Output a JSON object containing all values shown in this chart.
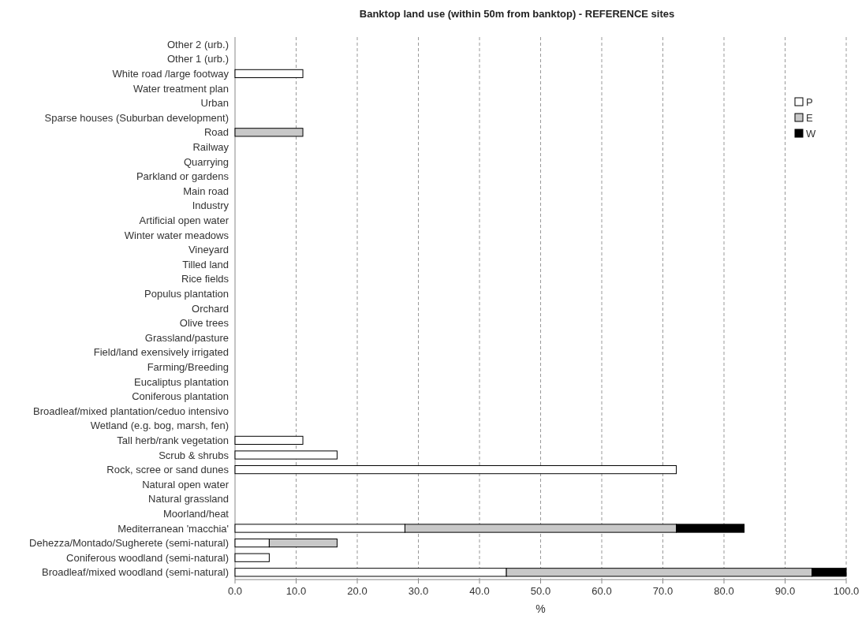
{
  "chart_data": {
    "type": "bar",
    "orientation": "horizontal",
    "stacked": true,
    "title": "Banktop land use (within 50m from banktop) - REFERENCE sites",
    "xlabel": "%",
    "categories": [
      "Other 2 (urb.)",
      "Other 1 (urb.)",
      "White road /large footway",
      "Water treatment plan",
      "Urban",
      "Sparse houses (Suburban development)",
      "Road",
      "Railway",
      "Quarrying",
      "Parkland or gardens",
      "Main road",
      "Industry",
      "Artificial open water",
      "Winter water meadows",
      "Vineyard",
      "Tilled land",
      "Rice fields",
      "Populus plantation",
      "Orchard",
      "Olive trees",
      "Grassland/pasture",
      "Field/land exensively irrigated",
      "Farming/Breeding",
      "Eucaliptus plantation",
      "Coniferous plantation",
      "Broadleaf/mixed plantation/ceduo intensivo",
      "Wetland (e.g. bog, marsh, fen)",
      "Tall herb/rank vegetation",
      "Scrub & shrubs",
      "Rock, scree or sand dunes",
      "Natural open water",
      "Natural grassland",
      "Moorland/heat",
      "Mediterranean 'macchia'",
      "Dehezza/Montado/Sugherete (semi-natural)",
      "Coniferous woodland (semi-natural)",
      "Broadleaf/mixed woodland (semi-natural)"
    ],
    "series": [
      {
        "name": "P",
        "color": "#ffffff",
        "values": [
          0,
          0,
          11.1,
          0,
          0,
          0,
          0,
          0,
          0,
          0,
          0,
          0,
          0,
          0,
          0,
          0,
          0,
          0,
          0,
          0,
          0,
          0,
          0,
          0,
          0,
          0,
          0,
          11.1,
          16.7,
          72.2,
          0,
          0,
          0,
          27.8,
          5.6,
          5.6,
          44.4
        ]
      },
      {
        "name": "E",
        "color": "#c8c8c8",
        "values": [
          0,
          0,
          0,
          0,
          0,
          0,
          11.1,
          0,
          0,
          0,
          0,
          0,
          0,
          0,
          0,
          0,
          0,
          0,
          0,
          0,
          0,
          0,
          0,
          0,
          0,
          0,
          0,
          0,
          0,
          0,
          0,
          0,
          0,
          44.4,
          11.1,
          0,
          50
        ]
      },
      {
        "name": "W",
        "color": "#000000",
        "values": [
          0,
          0,
          0,
          0,
          0,
          0,
          0,
          0,
          0,
          0,
          0,
          0,
          0,
          0,
          0,
          0,
          0,
          0,
          0,
          0,
          0,
          0,
          0,
          0,
          0,
          0,
          0,
          0,
          0,
          0,
          0,
          0,
          0,
          11.1,
          0,
          0,
          5.6
        ]
      }
    ],
    "xlim": [
      0,
      100
    ],
    "xticks": [
      {
        "value": 0,
        "label": "0.0"
      },
      {
        "value": 10,
        "label": "10.0"
      },
      {
        "value": 20,
        "label": "20.0"
      },
      {
        "value": 30,
        "label": "30.0"
      },
      {
        "value": 40,
        "label": "40.0"
      },
      {
        "value": 50,
        "label": "50.0"
      },
      {
        "value": 60,
        "label": "60.0"
      },
      {
        "value": 70,
        "label": "70.0"
      },
      {
        "value": 80,
        "label": "80.0"
      },
      {
        "value": 90,
        "label": "90.0"
      },
      {
        "value": 100,
        "label": "100.0"
      }
    ],
    "grid": "x",
    "legend": "top right"
  }
}
